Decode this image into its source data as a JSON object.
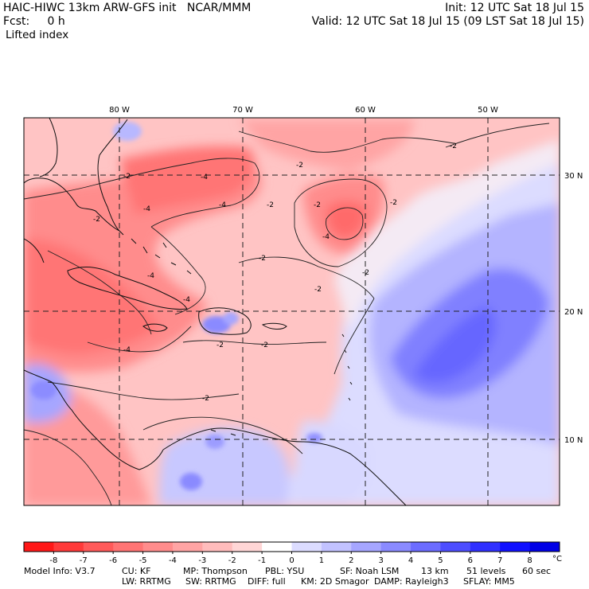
{
  "header": {
    "model": "HAIC-HIWC 13km ARW-GFS init",
    "org": "NCAR/MMM",
    "init": "Init: 12 UTC Sat 18 Jul 15",
    "fcst_label": "Fcst:",
    "fcst_value": "0 h",
    "valid": "Valid: 12 UTC Sat 18 Jul 15 (09 LST Sat 18 Jul 15)",
    "field": "Lifted index"
  },
  "map": {
    "lon_labels": [
      "80 W",
      "70 W",
      "60 W",
      "50 W"
    ],
    "lat_labels": [
      "30 N",
      "20 N",
      "10 N"
    ],
    "contour_labels": [
      "-2",
      "-4"
    ]
  },
  "colorbar": {
    "ticks": [
      "-8",
      "-7",
      "-6",
      "-5",
      "-4",
      "-3",
      "-2",
      "-1",
      "0",
      "1",
      "2",
      "3",
      "4",
      "5",
      "6",
      "7",
      "8"
    ],
    "unit": "°C",
    "colors": [
      "#ff1818",
      "#ff3a3a",
      "#ff5a5a",
      "#ff7474",
      "#ff8c8c",
      "#ffa4a4",
      "#ffbcbc",
      "#ffd6d6",
      "#ffffff",
      "#dcdcff",
      "#c2c2ff",
      "#a6a6ff",
      "#8a8aff",
      "#6c6cff",
      "#4e4eff",
      "#3030ff",
      "#1010ff",
      "#0000e6"
    ]
  },
  "model_info": {
    "line1": [
      "Model Info: V3.7",
      "CU: KF",
      "MP: Thompson",
      "PBL: YSU",
      "SF: Noah LSM",
      "13 km",
      "51 levels",
      "60 sec"
    ],
    "line2": [
      "LW: RRTMG",
      "SW: RRTMG",
      "DIFF: full",
      "KM: 2D Smagor",
      "DAMP: Rayleigh3",
      "SFLAY: MM5"
    ]
  }
}
